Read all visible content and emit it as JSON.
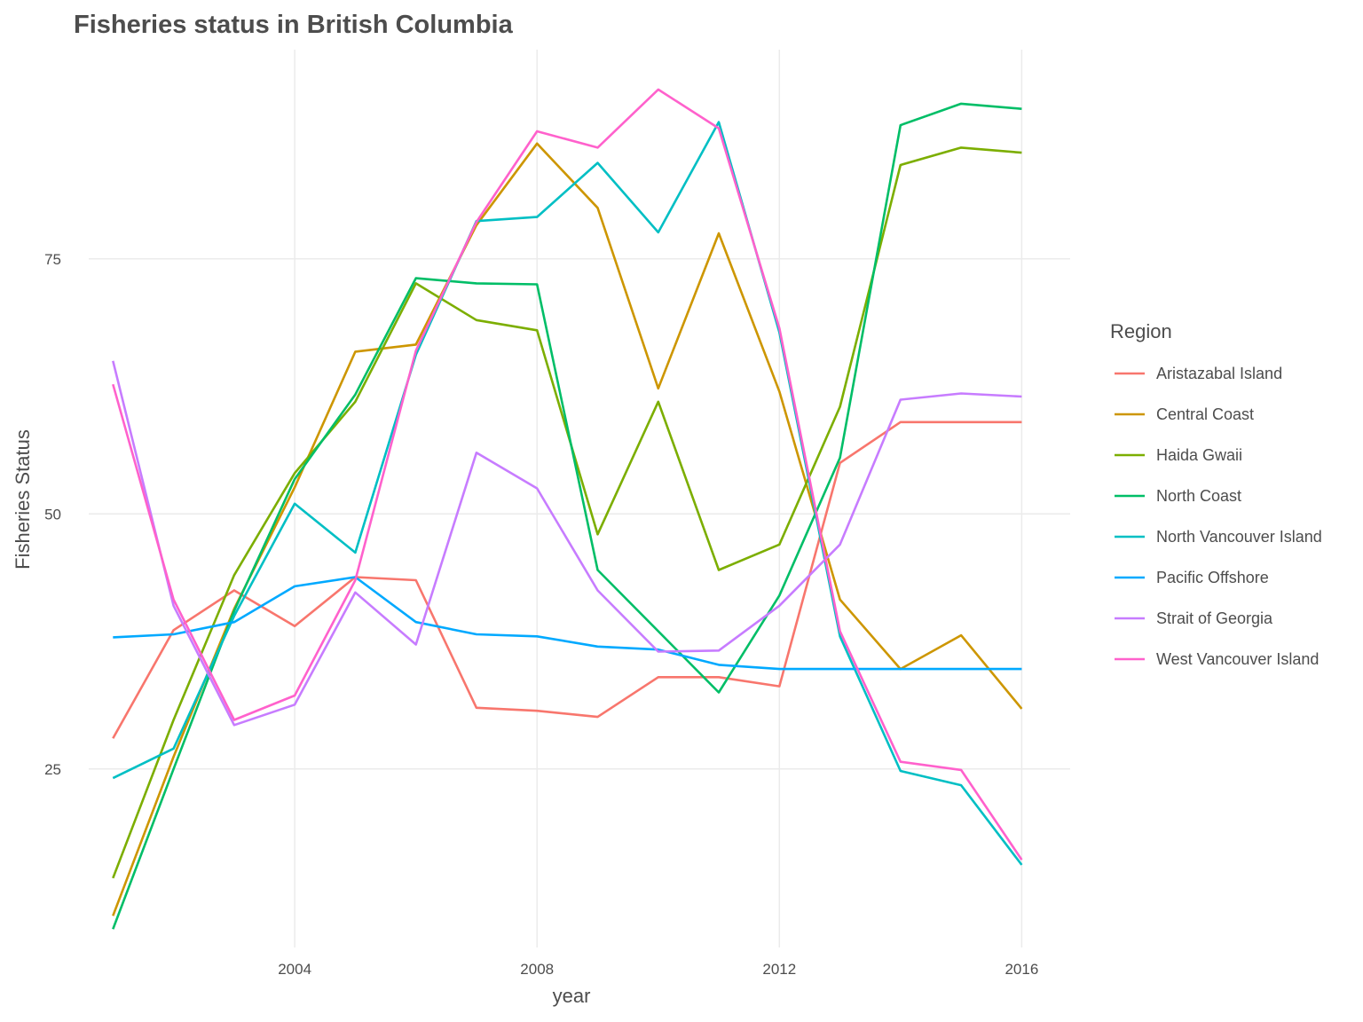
{
  "chart_data": {
    "type": "line",
    "title": "Fisheries status in British Columbia",
    "xlabel": "year",
    "ylabel": "Fisheries Status",
    "xlim": [
      2000.6,
      2016.8
    ],
    "ylim": [
      7.5,
      95.5
    ],
    "x_ticks": [
      2004,
      2008,
      2012,
      2016
    ],
    "y_ticks": [
      25,
      50,
      75
    ],
    "grid": true,
    "legend": {
      "title": "Region",
      "position": "right"
    },
    "x": [
      2001,
      2002,
      2003,
      2004,
      2005,
      2006,
      2007,
      2008,
      2009,
      2010,
      2011,
      2012,
      2013,
      2014,
      2015,
      2016
    ],
    "series": [
      {
        "name": "Aristazabal Island",
        "color": "#F8766D",
        "values": [
          28.0,
          38.6,
          42.5,
          39.0,
          43.8,
          43.5,
          31.0,
          30.7,
          30.1,
          34.0,
          34.0,
          33.1,
          55.0,
          59.0,
          59.0,
          59.0
        ]
      },
      {
        "name": "Central Coast",
        "color": "#CD9600",
        "values": [
          10.6,
          26.2,
          40.7,
          52.6,
          65.9,
          66.6,
          78.3,
          86.3,
          80.0,
          62.3,
          77.5,
          62.0,
          41.6,
          34.8,
          38.1,
          30.9
        ]
      },
      {
        "name": "Haida Gwaii",
        "color": "#7CAE00",
        "values": [
          14.3,
          29.8,
          44.0,
          54.0,
          61.0,
          72.6,
          69.0,
          68.0,
          48.0,
          61.0,
          44.5,
          47.0,
          60.5,
          84.2,
          85.9,
          85.4
        ]
      },
      {
        "name": "North Coast",
        "color": "#00BE67",
        "values": [
          9.3,
          25.0,
          40.5,
          53.4,
          61.7,
          73.1,
          72.6,
          72.5,
          44.5,
          38.5,
          32.5,
          42.0,
          55.5,
          88.1,
          90.2,
          89.7
        ]
      },
      {
        "name": "North Vancouver Island",
        "color": "#00BFC4",
        "values": [
          24.1,
          27.0,
          40.0,
          51.0,
          46.2,
          65.6,
          78.7,
          79.1,
          84.4,
          77.6,
          88.4,
          67.8,
          38.0,
          24.8,
          23.4,
          15.6
        ]
      },
      {
        "name": "Pacific Offshore",
        "color": "#00A9FF",
        "values": [
          37.9,
          38.2,
          39.4,
          42.9,
          43.8,
          39.4,
          38.2,
          38.0,
          37.0,
          36.7,
          35.2,
          34.8,
          34.8,
          34.8,
          34.8,
          34.8
        ]
      },
      {
        "name": "Strait of Georgia",
        "color": "#C77CFF",
        "values": [
          65.0,
          41.0,
          29.3,
          31.3,
          42.3,
          37.2,
          56.0,
          52.5,
          42.5,
          36.5,
          36.6,
          41.0,
          47.0,
          61.2,
          61.8,
          61.5
        ]
      },
      {
        "name": "West Vancouver Island",
        "color": "#FF61CC",
        "values": [
          62.7,
          41.6,
          29.8,
          32.2,
          43.5,
          66.0,
          78.6,
          87.5,
          85.9,
          91.6,
          87.8,
          68.2,
          38.5,
          25.7,
          24.9,
          16.1
        ]
      }
    ]
  }
}
